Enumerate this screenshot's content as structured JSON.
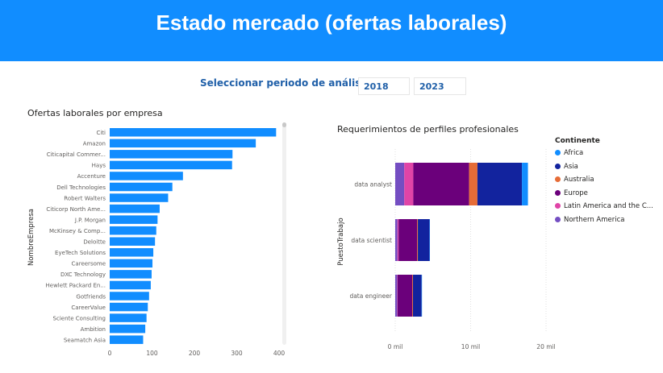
{
  "header": {
    "title": "Estado mercado (ofertas laborales)"
  },
  "period": {
    "label": "Seleccionar periodo de análisis",
    "start": "2018",
    "end": "2023"
  },
  "chart_data": [
    {
      "type": "bar",
      "orientation": "horizontal",
      "title": "Ofertas laborales por empresa",
      "ylabel": "NombreEmpresa",
      "xlabel": "",
      "xlim": [
        0,
        400
      ],
      "xticks": [
        "0",
        "100",
        "200",
        "300",
        "400"
      ],
      "color": "#118DFF",
      "categories": [
        "Citi",
        "Amazon",
        "Citicapital Commer...",
        "Hays",
        "Accenture",
        "Dell Technologies",
        "Robert Walters",
        "Citicorp North Ame...",
        "J.P. Morgan",
        "McKinsey & Comp...",
        "Deloitte",
        "EyeTech Solutions",
        "Careersome",
        "DXC Technology",
        "Hewlett Packard En...",
        "Gotfriends",
        "CareerValue",
        "Sciente Consulting",
        "Ambition",
        "Seamatch Asia"
      ],
      "values": [
        393,
        345,
        290,
        289,
        173,
        148,
        138,
        118,
        113,
        110,
        107,
        103,
        101,
        99,
        97,
        93,
        90,
        87,
        84,
        79
      ]
    },
    {
      "type": "bar",
      "orientation": "horizontal",
      "stacked": true,
      "title": "Requerimientos de perfiles profesionales",
      "ylabel": "PuestoTrabajo",
      "xlabel": "",
      "xlim": [
        0,
        20000
      ],
      "xticks": [
        "0 mil",
        "10 mil",
        "20 mil"
      ],
      "legend_title": "Continente",
      "legend_position": "right",
      "categories": [
        "data analyst",
        "data scientist",
        "data engineer"
      ],
      "series": [
        {
          "name": "Northern America",
          "color": "#744EC2",
          "values": [
            1200,
            300,
            250
          ]
        },
        {
          "name": "Latin America and the C...",
          "color": "#E044A7",
          "values": [
            1200,
            150,
            50
          ]
        },
        {
          "name": "Europe",
          "color": "#6B007B",
          "values": [
            7400,
            2450,
            1950
          ]
        },
        {
          "name": "Australia",
          "color": "#E66C37",
          "values": [
            1100,
            100,
            100
          ]
        },
        {
          "name": "Asia",
          "color": "#12239E",
          "values": [
            5900,
            1550,
            1150
          ]
        },
        {
          "name": "Africa",
          "color": "#118DFF",
          "values": [
            800,
            50,
            50
          ]
        }
      ],
      "legend_order": [
        "Africa",
        "Asia",
        "Australia",
        "Europe",
        "Latin America and the C...",
        "Northern America"
      ]
    }
  ]
}
